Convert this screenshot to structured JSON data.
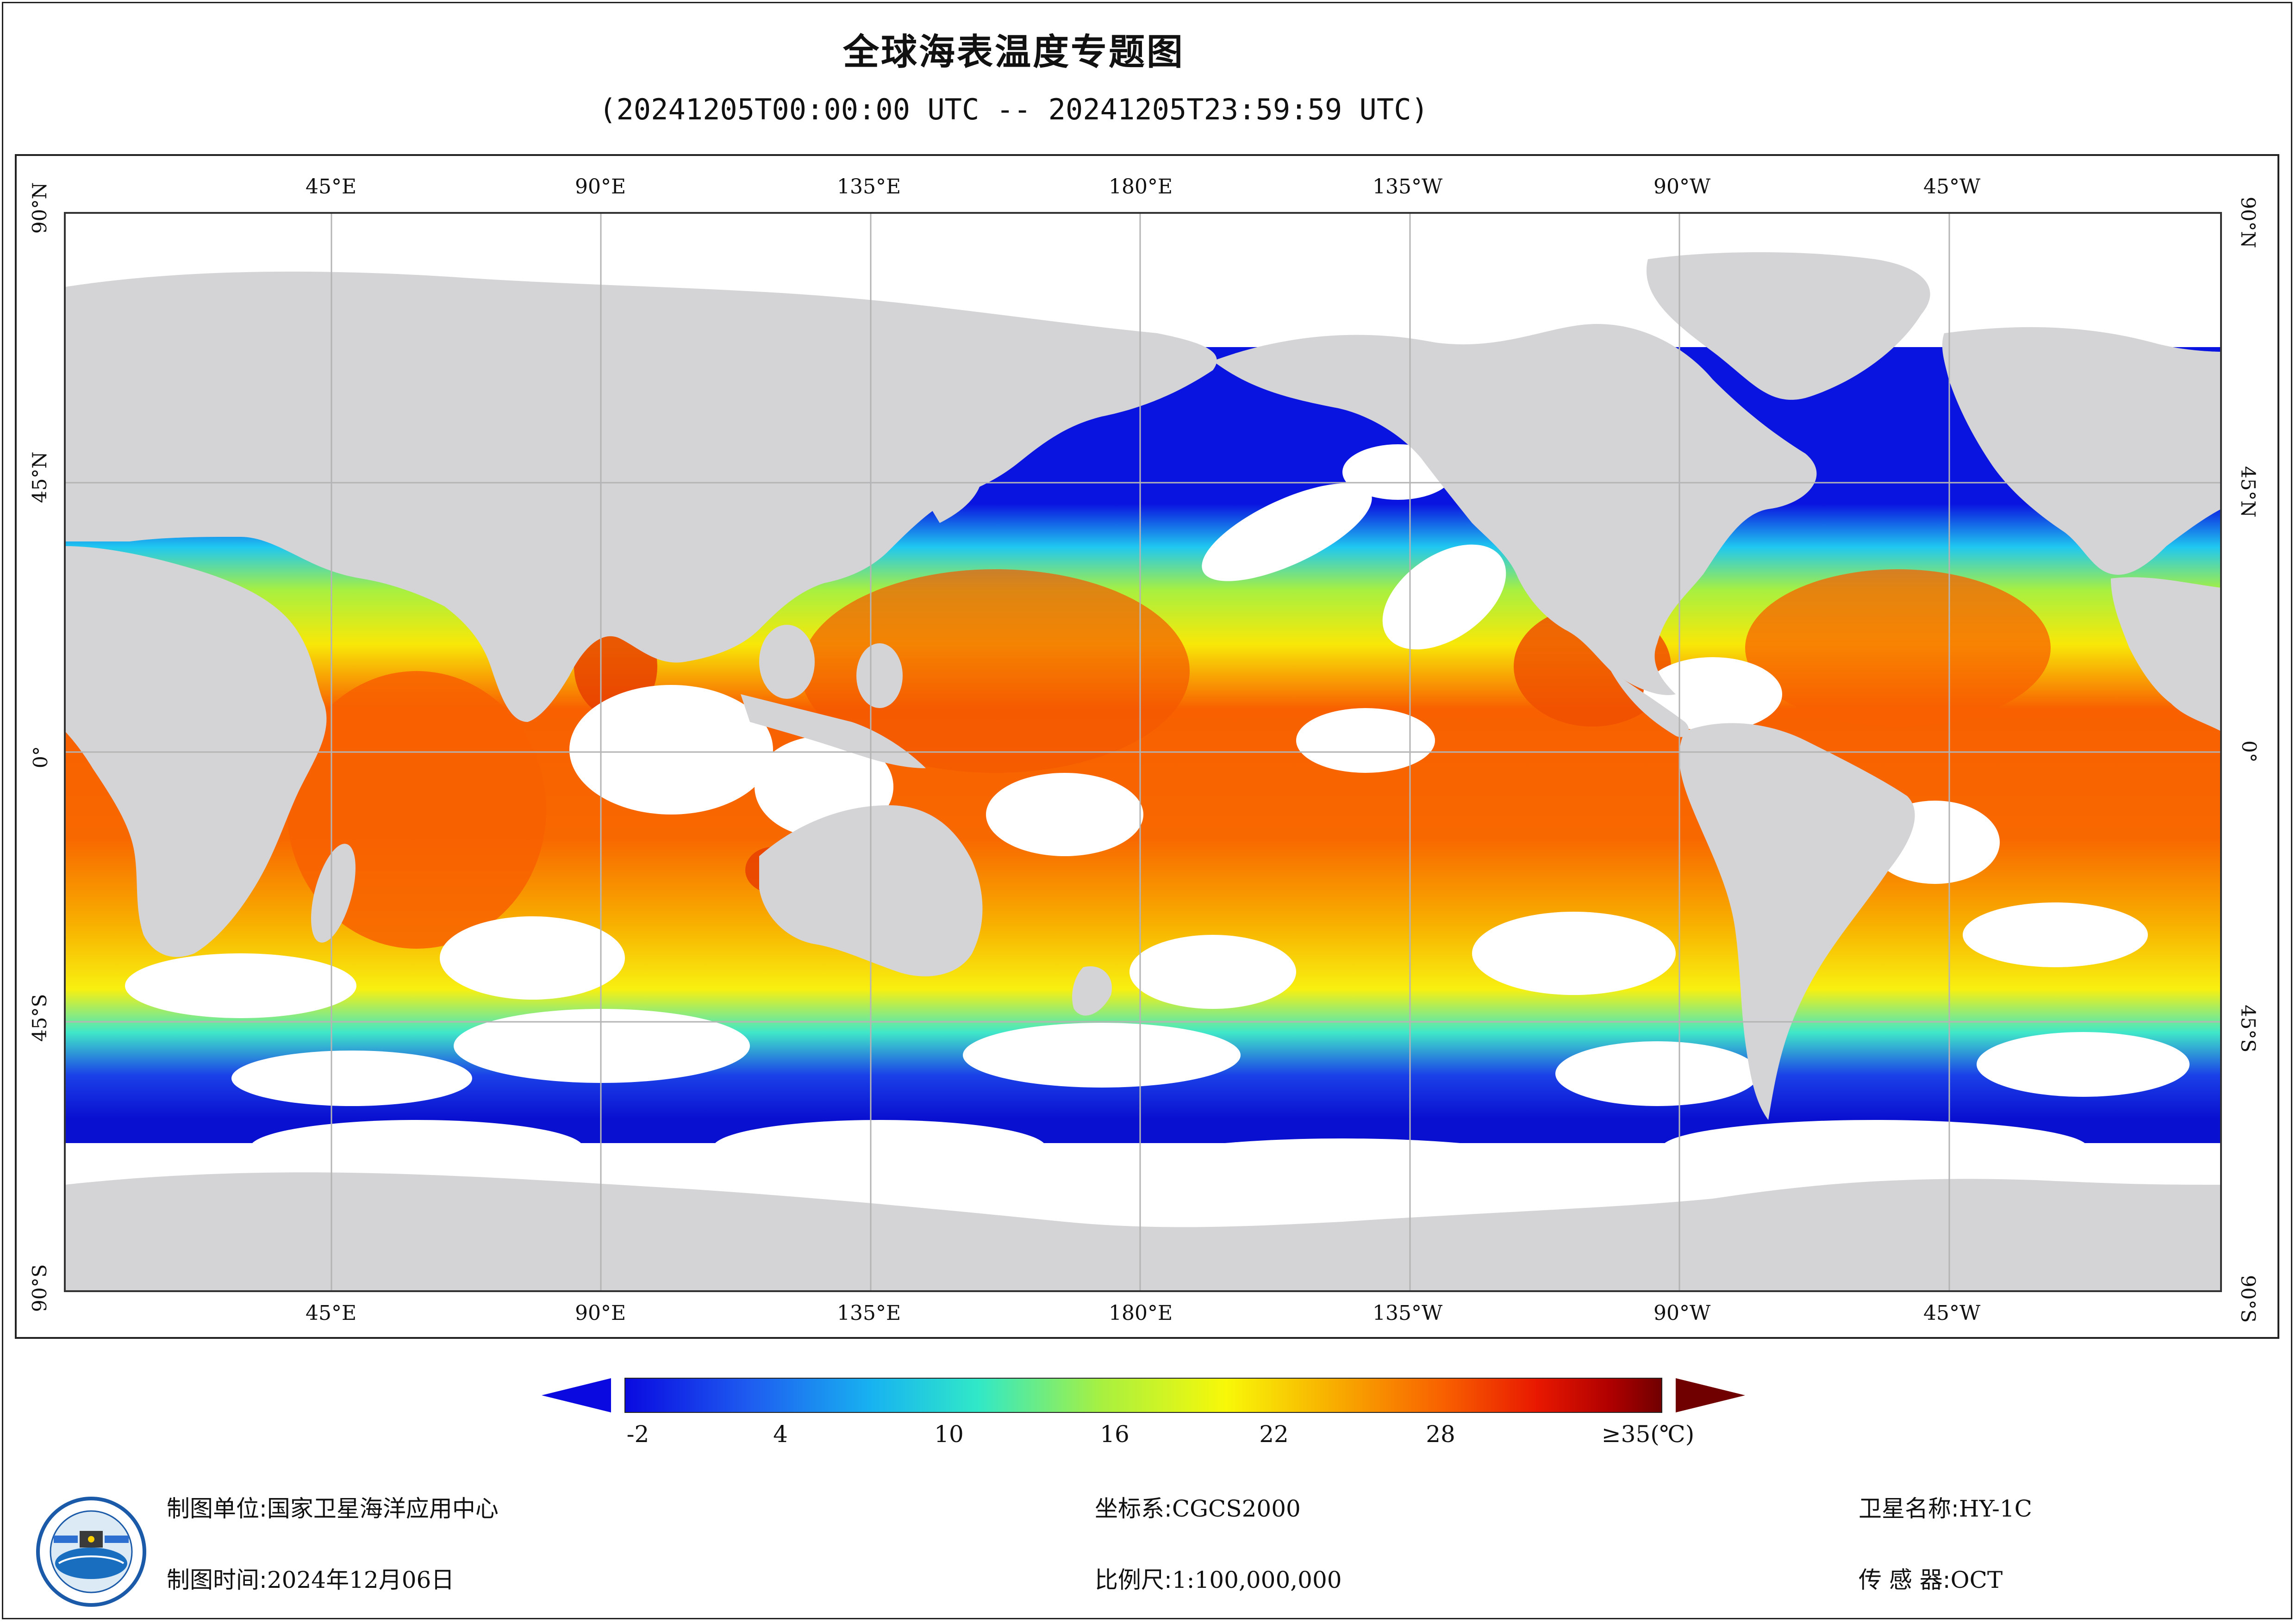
{
  "title": "全球海表温度专题图",
  "subtitle": "(20241205T00:00:00 UTC -- 20241205T23:59:59 UTC)",
  "map": {
    "lon_labels": [
      "45°E",
      "90°E",
      "135°E",
      "180°E",
      "135°W",
      "90°W",
      "45°W"
    ],
    "lat_labels": [
      "90°N",
      "45°N",
      "0°",
      "45°S",
      "90°S"
    ],
    "land_color": "#d4d4d6",
    "cloud_color": "#ffffff",
    "grid_color": "#b4b4b4"
  },
  "legend": {
    "tick_labels": [
      "-2",
      "4",
      "10",
      "16",
      "22",
      "28",
      "≥35(℃)"
    ],
    "colors": [
      "#0a0ae0",
      "#1e5cf0",
      "#18b4f0",
      "#30e8c8",
      "#a8f040",
      "#f8f808",
      "#f8b000",
      "#f86000",
      "#e81800",
      "#b00000",
      "#700000"
    ]
  },
  "info": {
    "unit_label": "制图单位:",
    "unit_value": "国家卫星海洋应用中心",
    "time_label": "制图时间:",
    "time_value": "2024年12月06日",
    "crs_label": "坐标系:",
    "crs_value": "CGCS2000",
    "scale_label": "比例尺:",
    "scale_value": "1:100,000,000",
    "sat_label": "卫星名称:",
    "sat_value": "HY-1C",
    "sensor_label": "传 感 器:",
    "sensor_value": "OCT"
  }
}
